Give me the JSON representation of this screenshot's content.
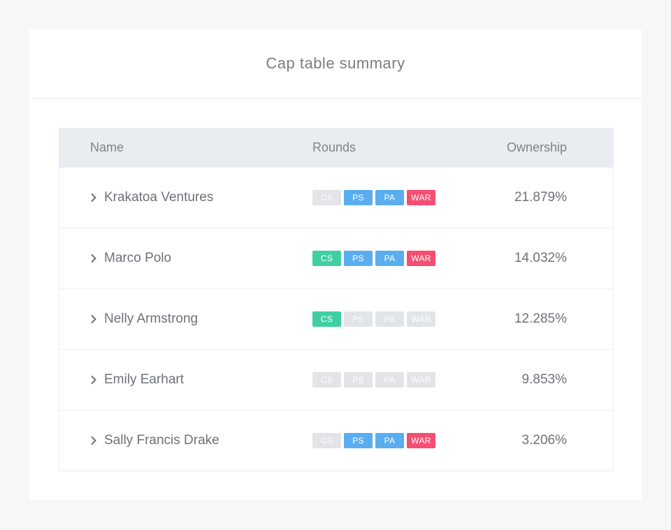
{
  "card": {
    "title": "Cap table summary"
  },
  "table": {
    "headers": {
      "name": "Name",
      "rounds": "Rounds",
      "ownership": "Ownership"
    },
    "colors": {
      "CS": "#3fcfa3",
      "PS": "#5aaef0",
      "PA": "#5aaef0",
      "WAR": "#f44e72",
      "inactive": "#e2e4e7"
    },
    "rows": [
      {
        "name": "Krakatoa Ventures",
        "ownership": "21.879%",
        "rounds": [
          {
            "label": "CS",
            "active": false
          },
          {
            "label": "PS",
            "active": true
          },
          {
            "label": "PA",
            "active": true
          },
          {
            "label": "WAR",
            "active": true
          }
        ]
      },
      {
        "name": "Marco Polo",
        "ownership": "14.032%",
        "rounds": [
          {
            "label": "CS",
            "active": true
          },
          {
            "label": "PS",
            "active": true
          },
          {
            "label": "PA",
            "active": true
          },
          {
            "label": "WAR",
            "active": true
          }
        ]
      },
      {
        "name": "Nelly Armstrong",
        "ownership": "12.285%",
        "rounds": [
          {
            "label": "CS",
            "active": true
          },
          {
            "label": "PS",
            "active": false
          },
          {
            "label": "PA",
            "active": false
          },
          {
            "label": "WAR",
            "active": false
          }
        ]
      },
      {
        "name": "Emily Earhart",
        "ownership": "9.853%",
        "rounds": [
          {
            "label": "CS",
            "active": false
          },
          {
            "label": "PS",
            "active": false
          },
          {
            "label": "PA",
            "active": false
          },
          {
            "label": "WAR",
            "active": false
          }
        ]
      },
      {
        "name": "Sally Francis Drake",
        "ownership": "3.206%",
        "rounds": [
          {
            "label": "CS",
            "active": false
          },
          {
            "label": "PS",
            "active": true
          },
          {
            "label": "PA",
            "active": true
          },
          {
            "label": "WAR",
            "active": true
          }
        ]
      }
    ]
  }
}
